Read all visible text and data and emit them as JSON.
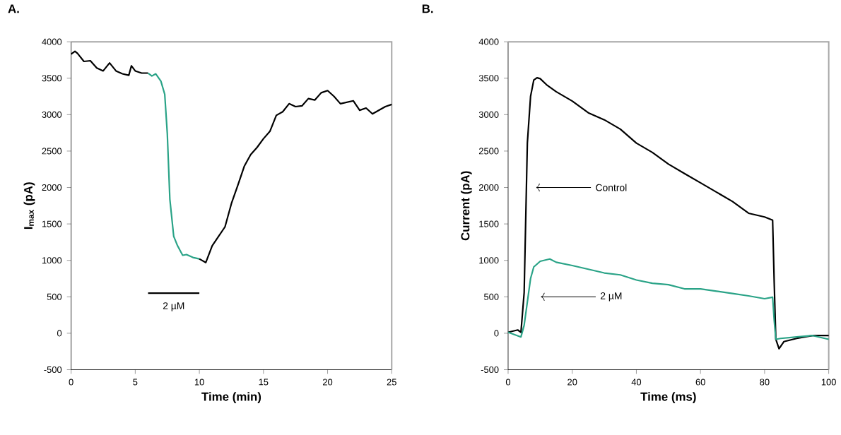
{
  "chart_data": [
    {
      "type": "line",
      "title": "A.",
      "xlabel": "Time (min)",
      "ylabel": "I$_{max}$ (pA)",
      "xlim": [
        0,
        25
      ],
      "ylim": [
        -500,
        4000
      ],
      "xticks": [
        0,
        5,
        10,
        15,
        20,
        25
      ],
      "yticks": [
        -500,
        0,
        500,
        1000,
        1500,
        2000,
        2500,
        3000,
        3500,
        4000
      ],
      "series": [
        {
          "color": "#000000",
          "x": [
            0,
            0.3,
            0.5,
            1,
            1.5,
            2,
            2.5,
            3,
            3.5,
            4,
            4.5,
            4.7,
            5,
            5.5,
            6
          ],
          "values": [
            3830,
            3870,
            3840,
            3730,
            3740,
            3640,
            3600,
            3710,
            3600,
            3560,
            3540,
            3670,
            3600,
            3570,
            3570
          ]
        },
        {
          "color": "#2aa387",
          "x": [
            6,
            6.3,
            6.6,
            7,
            7.3,
            7.5,
            7.7,
            8,
            8.3,
            8.7,
            9,
            9.5,
            10
          ],
          "values": [
            3570,
            3530,
            3560,
            3460,
            3280,
            2740,
            1840,
            1330,
            1200,
            1070,
            1080,
            1040,
            1020
          ]
        },
        {
          "color": "#000000",
          "x": [
            10,
            10.5,
            11,
            11.5,
            12,
            12.5,
            13,
            13.5,
            14,
            14.5,
            15,
            15.5,
            16,
            16.5,
            17,
            17.5,
            18,
            18.5,
            19,
            19.5,
            20,
            20.5,
            21,
            21.5,
            22,
            22.5,
            23,
            23.5,
            24,
            24.5,
            25
          ],
          "values": [
            1020,
            970,
            1200,
            1330,
            1460,
            1780,
            2030,
            2290,
            2450,
            2550,
            2670,
            2770,
            2990,
            3040,
            3150,
            3110,
            3120,
            3220,
            3200,
            3300,
            3330,
            3250,
            3150,
            3170,
            3190,
            3060,
            3090,
            3010,
            3060,
            3110,
            3140
          ]
        },
        {
          "name": "2 µM",
          "color": "#000000",
          "x": [
            6,
            10
          ],
          "values": [
            550,
            550
          ]
        }
      ]
    },
    {
      "type": "line",
      "title": "B.",
      "xlabel": "Time (ms)",
      "ylabel": "Current (pA)",
      "xlim": [
        0,
        100
      ],
      "ylim": [
        -500,
        4000
      ],
      "xticks": [
        0,
        20,
        40,
        60,
        80,
        100
      ],
      "yticks": [
        -500,
        0,
        500,
        1000,
        1500,
        2000,
        2500,
        3000,
        3500,
        4000
      ],
      "annotations": [
        {
          "text": "Control",
          "x": 8.7,
          "y": 2000
        },
        {
          "text": "2 µM",
          "x": 10.2,
          "y": 500
        }
      ],
      "series": [
        {
          "color": "#000000",
          "x": [
            0,
            3,
            4,
            5,
            6,
            7,
            8,
            9,
            10,
            12,
            15,
            20,
            25,
            30,
            35,
            40,
            45,
            50,
            55,
            60,
            65,
            70,
            75,
            80,
            82.5,
            83,
            83.5,
            84.5,
            86,
            90,
            95,
            100
          ],
          "values": [
            13,
            45,
            13,
            558,
            2609,
            3250,
            3474,
            3506,
            3494,
            3410,
            3314,
            3186,
            3026,
            2929,
            2801,
            2609,
            2481,
            2321,
            2192,
            2064,
            1936,
            1808,
            1647,
            1596,
            1551,
            686,
            -83,
            -212,
            -115,
            -71,
            -32,
            -32
          ]
        },
        {
          "color": "#2aa387",
          "x": [
            0,
            4,
            5,
            6,
            7,
            8,
            10,
            13,
            15,
            20,
            25,
            30,
            35,
            40,
            45,
            50,
            55,
            60,
            65,
            70,
            75,
            80,
            82.5,
            83,
            83.5,
            85,
            90,
            95,
            100
          ],
          "values": [
            13,
            -51,
            109,
            429,
            750,
            910,
            987,
            1019,
            974,
            929,
            878,
            827,
            801,
            731,
            686,
            667,
            609,
            609,
            577,
            545,
            513,
            474,
            494,
            173,
            -83,
            -71,
            -51,
            -32,
            -83
          ]
        }
      ]
    }
  ]
}
